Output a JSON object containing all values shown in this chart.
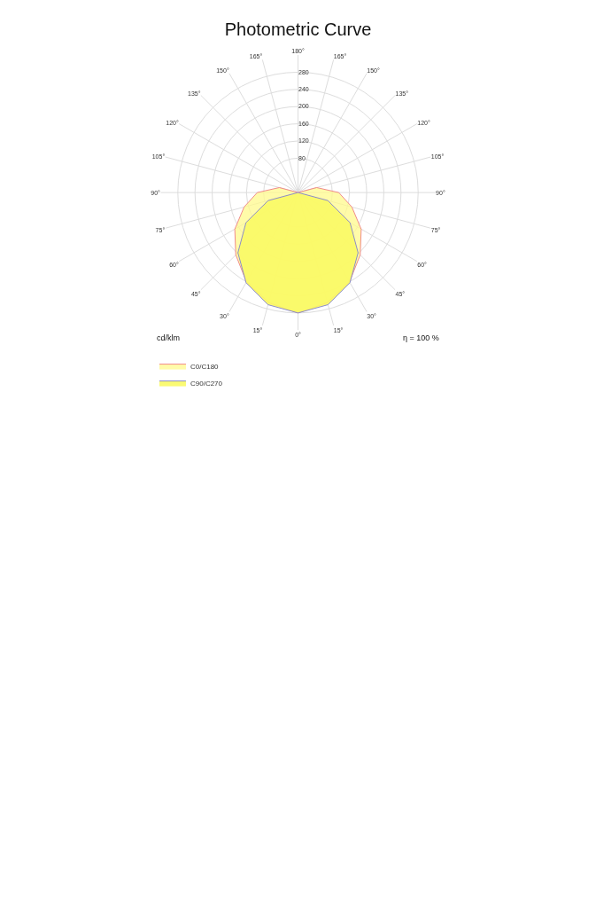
{
  "chart_data": {
    "type": "radar",
    "title": "Photometric Curve",
    "categories": [
      "180°",
      "165°",
      "150°",
      "135°",
      "120°",
      "105°",
      "90°",
      "75°",
      "60°",
      "45°",
      "30°",
      "15°",
      "0°",
      "15°",
      "30°",
      "45°",
      "60°",
      "75°",
      "90°",
      "105°",
      "120°",
      "135°",
      "150°",
      "165°"
    ],
    "series": [
      {
        "name": "C0/C180",
        "color": "#f08a8a",
        "values": [
          0,
          0,
          0,
          0,
          0,
          45,
          95,
          130,
          170,
          205,
          240,
          265,
          280,
          265,
          240,
          205,
          170,
          130,
          95,
          45,
          0,
          0,
          0,
          0
        ]
      },
      {
        "name": "C90/C270",
        "color": "#8c8cc8",
        "values": [
          0,
          0,
          0,
          0,
          0,
          0,
          0,
          72,
          140,
          198,
          242,
          270,
          280,
          270,
          242,
          198,
          140,
          72,
          0,
          0,
          0,
          0,
          0,
          0
        ]
      }
    ],
    "ylim": [
      0,
      320
    ],
    "yticks": [
      80,
      120,
      160,
      200,
      240,
      280
    ],
    "grid": true,
    "legend": "bottom left",
    "annotations": [
      "cd/klm",
      "η = 100 %"
    ]
  }
}
